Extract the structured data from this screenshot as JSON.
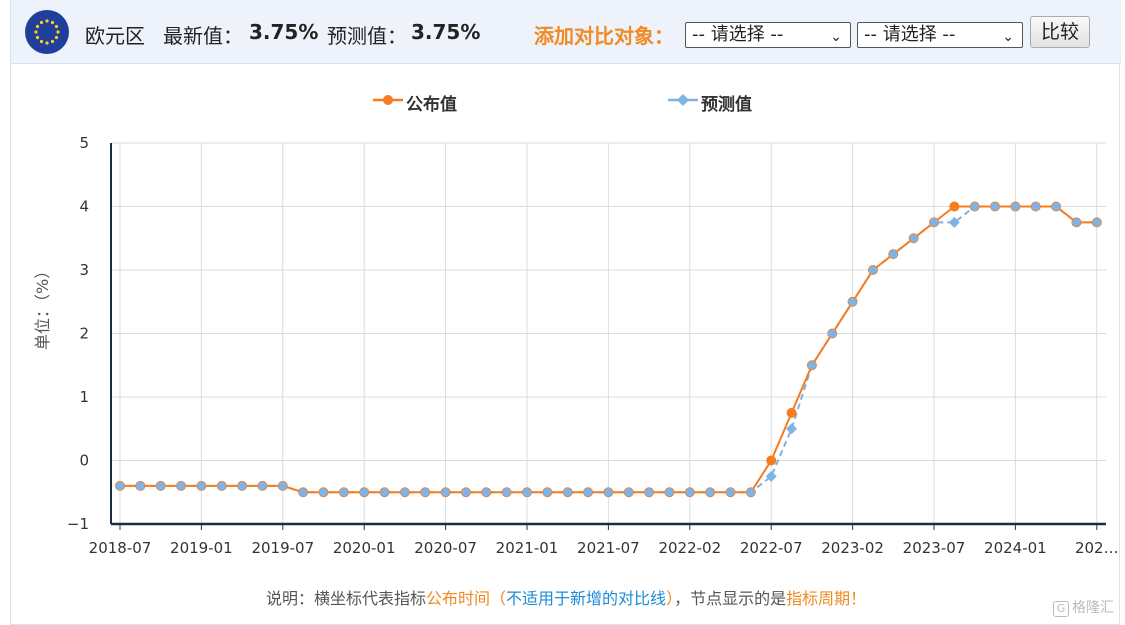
{
  "header": {
    "region": "欧元区",
    "latest_label": "最新值：",
    "latest_value": "3.75%",
    "forecast_label": "预测值：",
    "forecast_value": "3.75%",
    "add_compare_label": "添加对比对象：",
    "select1_value": "-- 请选择 --",
    "select2_value": "-- 请选择 --",
    "compare_button": "比较",
    "flag_icon": "eu-flag-icon"
  },
  "colors": {
    "published": "#f57c1f",
    "forecast": "#7fb2e5",
    "accent_orange": "#f08a24",
    "accent_blue": "#1c8ad6"
  },
  "chart_data": {
    "type": "line",
    "ylabel": "单位：（%）",
    "ylim": [
      -1,
      5
    ],
    "yticks": [
      -1,
      0,
      1,
      2,
      3,
      4,
      5
    ],
    "ytick_labels": [
      "−1",
      "0",
      "1",
      "2",
      "3",
      "4",
      "5"
    ],
    "grid": true,
    "legend_position": "top",
    "x_tick_labels": [
      "2018-07",
      "2019-01",
      "2019-07",
      "2020-01",
      "2020-07",
      "2021-01",
      "2021-07",
      "2022-02",
      "2022-07",
      "2023-02",
      "2023-07",
      "2024-01",
      "202…"
    ],
    "x_tick_point_index": [
      0,
      4,
      8,
      12,
      16,
      20,
      24,
      28,
      32,
      36,
      40,
      44,
      48
    ],
    "series": [
      {
        "name": "公布值",
        "values": [
          -0.4,
          -0.4,
          -0.4,
          -0.4,
          -0.4,
          -0.4,
          -0.4,
          -0.4,
          -0.4,
          -0.5,
          -0.5,
          -0.5,
          -0.5,
          -0.5,
          -0.5,
          -0.5,
          -0.5,
          -0.5,
          -0.5,
          -0.5,
          -0.5,
          -0.5,
          -0.5,
          -0.5,
          -0.5,
          -0.5,
          -0.5,
          -0.5,
          -0.5,
          -0.5,
          -0.5,
          -0.5,
          0,
          0.75,
          1.5,
          2,
          2.5,
          3,
          3.25,
          3.5,
          3.75,
          4,
          4,
          4,
          4,
          4,
          4,
          3.75,
          3.75
        ]
      },
      {
        "name": "预测值",
        "values": [
          -0.4,
          -0.4,
          -0.4,
          -0.4,
          -0.4,
          -0.4,
          -0.4,
          -0.4,
          -0.4,
          -0.5,
          -0.5,
          -0.5,
          -0.5,
          -0.5,
          -0.5,
          -0.5,
          -0.5,
          -0.5,
          -0.5,
          -0.5,
          -0.5,
          -0.5,
          -0.5,
          -0.5,
          -0.5,
          -0.5,
          -0.5,
          -0.5,
          -0.5,
          -0.5,
          -0.5,
          -0.5,
          -0.25,
          0.5,
          1.5,
          2,
          2.5,
          3,
          3.25,
          3.5,
          3.75,
          3.75,
          4,
          4,
          4,
          4,
          4,
          3.75,
          3.75
        ]
      }
    ]
  },
  "note": {
    "prefix": "说明：横坐标代表指标",
    "pub_time": "公布时间",
    "paren_open": "（",
    "not_applicable": "不适用于新增的对比线",
    "paren_close": "）",
    "middle": "，节点显示的是",
    "period": "指标周期",
    "suffix": "！"
  },
  "watermark": {
    "text": "格隆汇",
    "icon": "G"
  }
}
